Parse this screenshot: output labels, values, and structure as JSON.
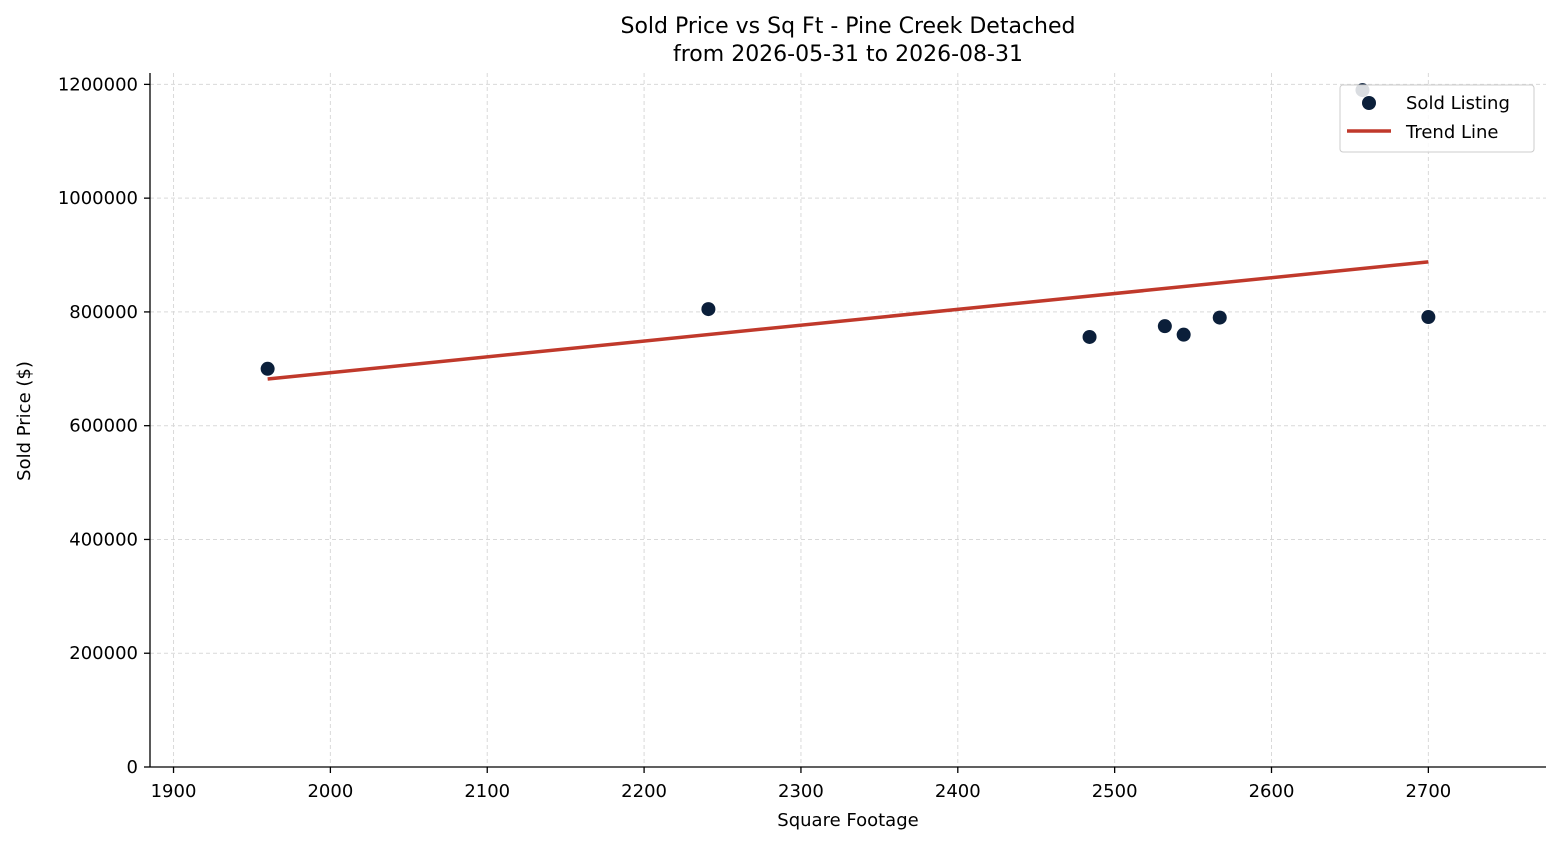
{
  "chart_data": {
    "type": "scatter",
    "title": "Sold Price vs Sq Ft - Pine Creek Detached",
    "subtitle": "from 2026-05-31 to 2026-08-31",
    "xlabel": "Square Footage",
    "ylabel": "Sold Price ($)",
    "xlim": [
      1885,
      2775
    ],
    "ylim": [
      0,
      1220000
    ],
    "x_ticks": [
      1900,
      2000,
      2100,
      2200,
      2300,
      2400,
      2500,
      2600,
      2700
    ],
    "y_ticks": [
      0,
      200000,
      400000,
      600000,
      800000,
      1000000,
      1200000
    ],
    "grid": true,
    "legend_position": "top-right",
    "series": [
      {
        "name": "Sold Listing",
        "kind": "scatter",
        "color": "#0b1f3a",
        "points": [
          {
            "x": 1960,
            "y": 700000
          },
          {
            "x": 2241,
            "y": 805000
          },
          {
            "x": 2484,
            "y": 756000
          },
          {
            "x": 2532,
            "y": 775000
          },
          {
            "x": 2544,
            "y": 760000
          },
          {
            "x": 2567,
            "y": 790000
          },
          {
            "x": 2658,
            "y": 1190000
          },
          {
            "x": 2700,
            "y": 791000
          }
        ]
      },
      {
        "name": "Trend Line",
        "kind": "line",
        "color": "#c0392b",
        "points": [
          {
            "x": 1960,
            "y": 682000
          },
          {
            "x": 2700,
            "y": 888000
          }
        ]
      }
    ]
  }
}
